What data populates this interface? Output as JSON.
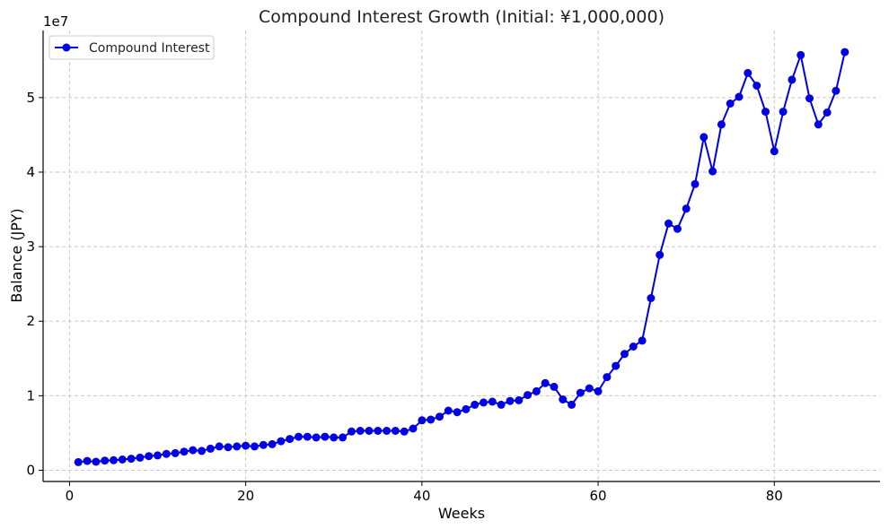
{
  "chart_data": {
    "type": "line",
    "title": "Compound Interest Growth (Initial: ¥1,000,000)",
    "xlabel": "Weeks",
    "ylabel": "Balance (JPY)",
    "y_offset_label": "1e7",
    "xlim": [
      -3,
      92
    ],
    "ylim": [
      -1500000,
      59000000
    ],
    "x_ticks": [
      0,
      20,
      40,
      60,
      80
    ],
    "y_ticks": [
      0,
      10000000,
      20000000,
      30000000,
      40000000,
      50000000
    ],
    "y_tick_labels": [
      "0",
      "1",
      "2",
      "3",
      "4",
      "5"
    ],
    "grid": true,
    "legend_position": "top-left",
    "series": [
      {
        "name": "Compound Interest",
        "color": "#0000e6",
        "x": [
          1,
          2,
          3,
          4,
          5,
          6,
          7,
          8,
          9,
          10,
          11,
          12,
          13,
          14,
          15,
          16,
          17,
          18,
          19,
          20,
          21,
          22,
          23,
          24,
          25,
          26,
          27,
          28,
          29,
          30,
          31,
          32,
          33,
          34,
          35,
          36,
          37,
          38,
          39,
          40,
          41,
          42,
          43,
          44,
          45,
          46,
          47,
          48,
          49,
          50,
          51,
          52,
          53,
          54,
          55,
          56,
          57,
          58,
          59,
          60,
          61,
          62,
          63,
          64,
          65,
          66,
          67,
          68,
          69,
          70,
          71,
          72,
          73,
          74,
          75,
          76,
          77,
          78,
          79,
          80,
          81,
          82,
          83,
          84,
          85,
          86,
          87,
          88
        ],
        "values": [
          1100000,
          1250000,
          1150000,
          1300000,
          1350000,
          1450000,
          1550000,
          1700000,
          1900000,
          2000000,
          2200000,
          2300000,
          2500000,
          2700000,
          2600000,
          2900000,
          3200000,
          3100000,
          3200000,
          3300000,
          3200000,
          3400000,
          3500000,
          3900000,
          4200000,
          4500000,
          4500000,
          4400000,
          4500000,
          4400000,
          4400000,
          5200000,
          5300000,
          5300000,
          5300000,
          5300000,
          5300000,
          5200000,
          5600000,
          6700000,
          6800000,
          7200000,
          8000000,
          7800000,
          8200000,
          8800000,
          9100000,
          9200000,
          8800000,
          9300000,
          9400000,
          10100000,
          10600000,
          11700000,
          11200000,
          9500000,
          8800000,
          10400000,
          11000000,
          10600000,
          12500000,
          14000000,
          15600000,
          16600000,
          17400000,
          23100000,
          28900000,
          33100000,
          32400000,
          35100000,
          38400000,
          44700000,
          40100000,
          46400000,
          49200000,
          50100000,
          53300000,
          51600000,
          48100000,
          42800000,
          48100000,
          52400000,
          55700000,
          49900000,
          46400000,
          48000000,
          50900000,
          56100000
        ]
      }
    ]
  }
}
